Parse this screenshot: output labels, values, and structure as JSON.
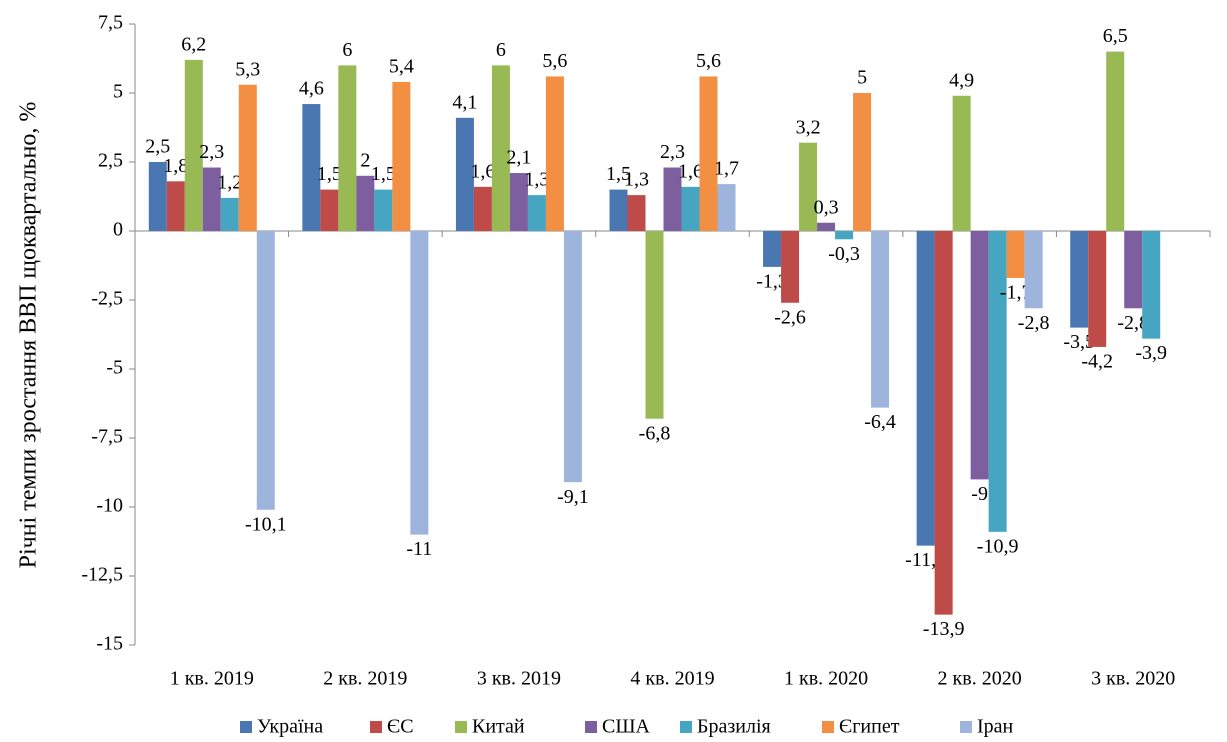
{
  "chart_data": {
    "type": "bar",
    "y_label": "Річні темпи зростання ВВП щоквартально, %",
    "categories": [
      "1 кв. 2019",
      "2 кв. 2019",
      "3 кв. 2019",
      "4 кв. 2019",
      "1 кв. 2020",
      "2 кв. 2020",
      "3 кв. 2020"
    ],
    "series": [
      {
        "name": "Україна",
        "color": "#4a76b1",
        "values": [
          2.5,
          4.6,
          4.1,
          1.5,
          -1.3,
          -11.4,
          -3.5
        ],
        "value_labels": [
          "2,5",
          "4,6",
          "4,1",
          "1,5",
          "-1,3",
          "-11,4",
          "-3,5"
        ]
      },
      {
        "name": "ЄС",
        "color": "#be4b48",
        "values": [
          1.8,
          1.5,
          1.6,
          1.3,
          -2.6,
          -13.9,
          -4.2
        ],
        "value_labels": [
          "1,8",
          "1,5",
          "1,6",
          "1,3",
          "-2,6",
          "-13,9",
          "-4,2"
        ]
      },
      {
        "name": "Китай",
        "color": "#98b954",
        "values": [
          6.2,
          6,
          6,
          -6.8,
          3.2,
          4.9,
          6.5
        ],
        "value_labels": [
          "6,2",
          "6",
          "6",
          "-6,8",
          "3,2",
          "4,9",
          "6,5"
        ]
      },
      {
        "name": "США",
        "color": "#7d5fa0",
        "values": [
          2.3,
          2,
          2.1,
          2.3,
          0.3,
          -9,
          -2.8
        ],
        "value_labels": [
          "2,3",
          "2",
          "2,1",
          "2,3",
          "0,3",
          "-9",
          "-2,8"
        ]
      },
      {
        "name": "Бразилія",
        "color": "#46a5c0",
        "values": [
          1.2,
          1.5,
          1.3,
          1.6,
          -0.3,
          -10.9,
          -3.9
        ],
        "value_labels": [
          "1,2",
          "1,5",
          "1,3",
          "1,6",
          "-0,3",
          "-10,9",
          "-3,9"
        ]
      },
      {
        "name": "Єгипет",
        "color": "#f38f42",
        "values": [
          5.3,
          5.4,
          5.6,
          5.6,
          5,
          -1.7,
          null
        ],
        "value_labels": [
          "5,3",
          "5,4",
          "5,6",
          "5,6",
          "5",
          "-1,7",
          null
        ]
      },
      {
        "name": "Іран",
        "color": "#9db5dc",
        "values": [
          -10.1,
          -11,
          -9.1,
          1.7,
          -6.4,
          -2.8,
          null
        ],
        "value_labels": [
          "-10,1",
          "-11",
          "-9,1",
          "1,7",
          "-6,4",
          "-2,8",
          null
        ]
      }
    ],
    "ylim": [
      -15,
      7.5
    ],
    "yticks": [
      {
        "value": -15,
        "label": "-15"
      },
      {
        "value": -12.5,
        "label": "-12,5"
      },
      -10,
      {
        "value": -7.5,
        "label": "-7,5"
      },
      -5,
      {
        "value": -2.5,
        "label": "-2,5"
      },
      0,
      {
        "value": 2.5,
        "label": "2,5"
      },
      5,
      {
        "value": 7.5,
        "label": "7,5"
      }
    ],
    "grid": false,
    "legend": "bottom"
  }
}
